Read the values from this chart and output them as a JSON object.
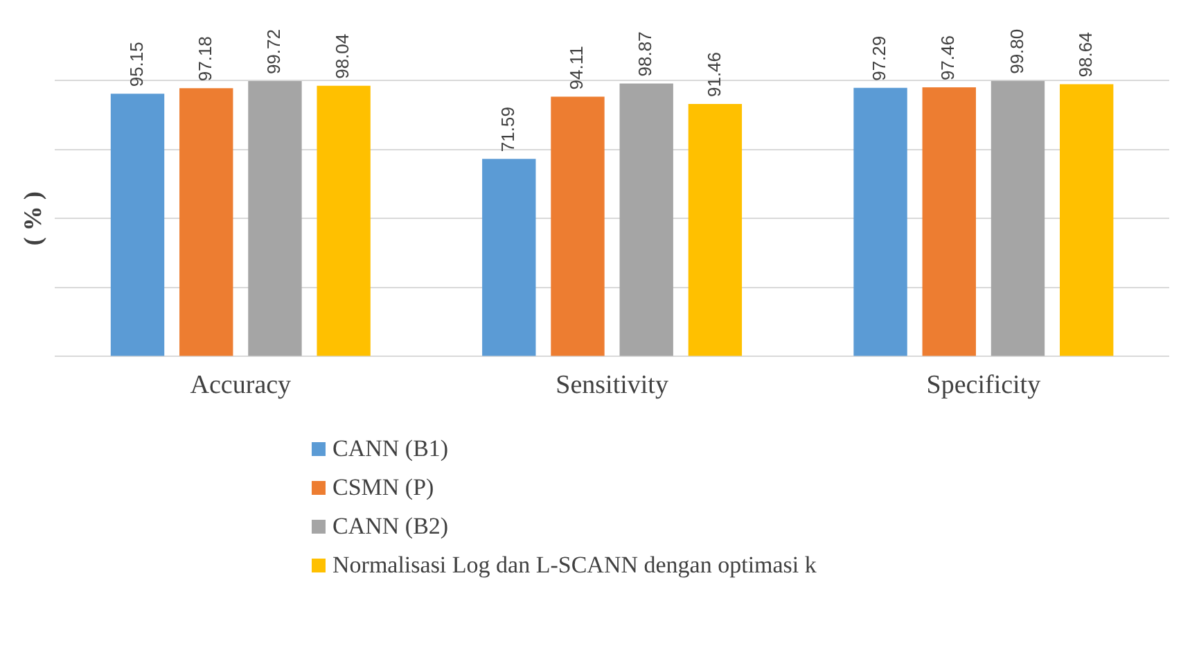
{
  "chart_data": {
    "type": "bar",
    "ylabel": "( % )",
    "categories": [
      "Accuracy",
      "Sensitivity",
      "Specificity"
    ],
    "series": [
      {
        "name": "CANN (B1)",
        "color": "#5b9bd5",
        "values": [
          95.15,
          71.59,
          97.29
        ],
        "value_labels": [
          "95.15",
          "71.59",
          "97.29"
        ]
      },
      {
        "name": "CSMN (P)",
        "color": "#ed7d31",
        "values": [
          97.18,
          94.11,
          97.46
        ],
        "value_labels": [
          "97.18",
          "94.11",
          "97.46"
        ]
      },
      {
        "name": "CANN (B2)",
        "color": "#a5a5a5",
        "values": [
          99.72,
          98.87,
          99.8
        ],
        "value_labels": [
          "99.72",
          "98.87",
          "99.80"
        ]
      },
      {
        "name": "Normalisasi Log dan L-SCANN dengan optimasi k",
        "color": "#ffc000",
        "values": [
          98.04,
          91.46,
          98.64
        ],
        "value_labels": [
          "98.04",
          "91.46",
          "98.64"
        ]
      }
    ],
    "ylim": [
      0,
      100
    ],
    "yticks": [
      {
        "value": 0,
        "label": null
      },
      {
        "value": 25,
        "label": null
      },
      {
        "value": 50,
        "label": null
      },
      {
        "value": 75,
        "label": null
      },
      {
        "value": 100,
        "label": null
      }
    ],
    "tick_labels": "x",
    "grid": "y",
    "legend": "bottom"
  }
}
